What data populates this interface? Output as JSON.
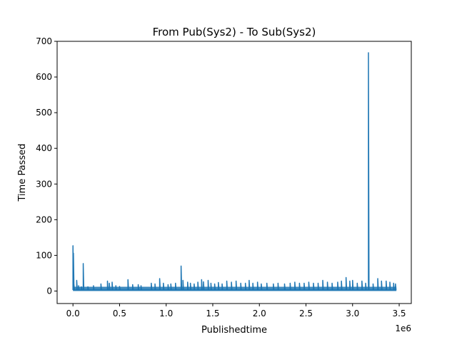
{
  "chart_data": {
    "type": "line",
    "title": "From Pub(Sys2) - To Sub(Sys2)",
    "xlabel": "Publishedtime",
    "ylabel": "Time Passed",
    "x_offset_label": "1e6",
    "xlim": [
      -0.17,
      3.63
    ],
    "ylim": [
      -35,
      700
    ],
    "x_ticks": [
      0.0,
      0.5,
      1.0,
      1.5,
      2.0,
      2.5,
      3.0,
      3.5
    ],
    "x_tick_labels": [
      "0.0",
      "0.5",
      "1.0",
      "1.5",
      "2.0",
      "2.5",
      "3.0",
      "3.5"
    ],
    "y_ticks": [
      0,
      100,
      200,
      300,
      400,
      500,
      600,
      700
    ],
    "y_tick_labels": [
      "0",
      "100",
      "200",
      "300",
      "400",
      "500",
      "600",
      "700"
    ],
    "grid": false,
    "color": "#1f77b4",
    "baseline": 3,
    "spikes": [
      [
        0.0,
        127
      ],
      [
        0.005,
        106
      ],
      [
        0.01,
        20
      ],
      [
        0.04,
        30
      ],
      [
        0.06,
        15
      ],
      [
        0.09,
        12
      ],
      [
        0.11,
        77
      ],
      [
        0.16,
        12
      ],
      [
        0.22,
        15
      ],
      [
        0.3,
        20
      ],
      [
        0.37,
        28
      ],
      [
        0.39,
        22
      ],
      [
        0.42,
        25
      ],
      [
        0.46,
        15
      ],
      [
        0.5,
        13
      ],
      [
        0.59,
        32
      ],
      [
        0.64,
        18
      ],
      [
        0.7,
        18
      ],
      [
        0.73,
        15
      ],
      [
        0.84,
        22
      ],
      [
        0.88,
        20
      ],
      [
        0.93,
        35
      ],
      [
        0.97,
        22
      ],
      [
        1.02,
        18
      ],
      [
        1.05,
        20
      ],
      [
        1.1,
        22
      ],
      [
        1.16,
        70
      ],
      [
        1.18,
        30
      ],
      [
        1.23,
        25
      ],
      [
        1.26,
        22
      ],
      [
        1.3,
        20
      ],
      [
        1.34,
        25
      ],
      [
        1.38,
        32
      ],
      [
        1.4,
        26
      ],
      [
        1.45,
        30
      ],
      [
        1.48,
        22
      ],
      [
        1.52,
        20
      ],
      [
        1.56,
        24
      ],
      [
        1.6,
        20
      ],
      [
        1.65,
        28
      ],
      [
        1.7,
        25
      ],
      [
        1.75,
        28
      ],
      [
        1.8,
        22
      ],
      [
        1.85,
        22
      ],
      [
        1.89,
        30
      ],
      [
        1.93,
        22
      ],
      [
        1.98,
        25
      ],
      [
        2.02,
        20
      ],
      [
        2.08,
        22
      ],
      [
        2.15,
        20
      ],
      [
        2.2,
        22
      ],
      [
        2.27,
        20
      ],
      [
        2.33,
        22
      ],
      [
        2.38,
        25
      ],
      [
        2.43,
        22
      ],
      [
        2.48,
        22
      ],
      [
        2.53,
        25
      ],
      [
        2.58,
        22
      ],
      [
        2.63,
        22
      ],
      [
        2.68,
        30
      ],
      [
        2.73,
        25
      ],
      [
        2.78,
        22
      ],
      [
        2.84,
        25
      ],
      [
        2.88,
        28
      ],
      [
        2.93,
        38
      ],
      [
        2.97,
        28
      ],
      [
        3.0,
        30
      ],
      [
        3.05,
        22
      ],
      [
        3.1,
        28
      ],
      [
        3.14,
        22
      ],
      [
        3.17,
        668
      ],
      [
        3.22,
        20
      ],
      [
        3.27,
        35
      ],
      [
        3.31,
        28
      ],
      [
        3.36,
        28
      ],
      [
        3.4,
        25
      ],
      [
        3.44,
        22
      ],
      [
        3.46,
        20
      ]
    ],
    "x_end": 3.47
  }
}
